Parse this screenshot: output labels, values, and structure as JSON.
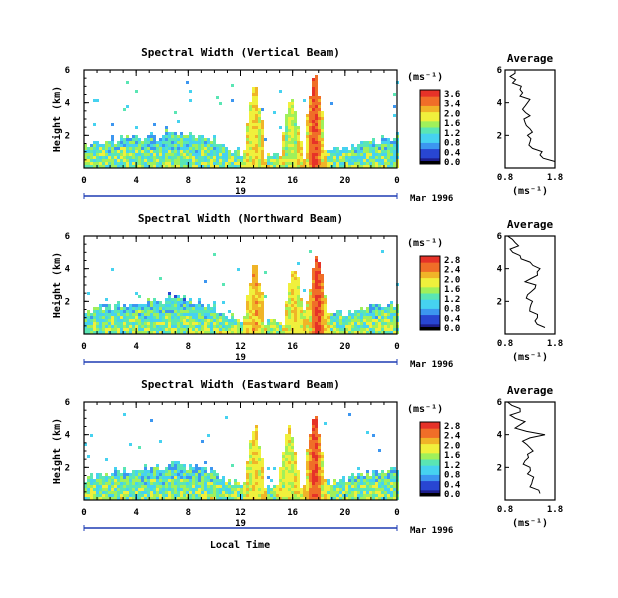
{
  "colors": {
    "scale": [
      "#1e1e8c",
      "#2846d2",
      "#3c96f0",
      "#46d2f0",
      "#5ae6b4",
      "#a0f05a",
      "#f0f03c",
      "#f0b428",
      "#f06e28",
      "#e63228"
    ],
    "frame": "#000000",
    "date_bar": "#1e3cb4"
  },
  "panels": [
    {
      "title": "Spectral Width (Vertical Beam)",
      "ylabel": "Height (km)",
      "yticks": [
        "6",
        "4",
        "2"
      ],
      "xticks": [
        "0",
        "4",
        "8",
        "12",
        "16",
        "20",
        "0"
      ],
      "date_day": "19",
      "date_label": "Mar 1996",
      "colorbar": {
        "unit": "(ms⁻¹)",
        "ticks": [
          "3.6",
          "3.4",
          "2.0",
          "1.6",
          "1.2",
          "0.8",
          "0.4",
          "0.0"
        ]
      },
      "avg": {
        "title": "Average",
        "xticks": [
          "0.8",
          "1.8"
        ],
        "xlabel": "(ms⁻¹)",
        "yticks": [
          "6",
          "4",
          "2"
        ]
      }
    },
    {
      "title": "Spectral Width (Northward Beam)",
      "ylabel": "Height (km)",
      "yticks": [
        "6",
        "4",
        "2"
      ],
      "xticks": [
        "0",
        "4",
        "8",
        "12",
        "16",
        "20",
        "0"
      ],
      "date_day": "19",
      "date_label": "Mar 1996",
      "colorbar": {
        "unit": "(ms⁻¹)",
        "ticks": [
          "2.8",
          "2.4",
          "2.0",
          "1.6",
          "1.2",
          "0.8",
          "0.4",
          "0.0"
        ]
      },
      "avg": {
        "title": "Average",
        "xticks": [
          "0.8",
          "1.8"
        ],
        "xlabel": "(ms⁻¹)",
        "yticks": [
          "6",
          "4",
          "2"
        ]
      }
    },
    {
      "title": "Spectral Width (Eastward Beam)",
      "ylabel": "Height (km)",
      "yticks": [
        "6",
        "4",
        "2"
      ],
      "xticks": [
        "0",
        "4",
        "8",
        "12",
        "16",
        "20",
        "0"
      ],
      "date_day": "19",
      "date_label": "Mar 1996",
      "colorbar": {
        "unit": "(ms⁻¹)",
        "ticks": [
          "2.8",
          "2.4",
          "2.0",
          "1.6",
          "1.2",
          "0.8",
          "0.4",
          "0.0"
        ]
      },
      "avg": {
        "title": "Average",
        "xticks": [
          "0.8",
          "1.8"
        ],
        "xlabel": "(ms⁻¹)",
        "yticks": [
          "6",
          "4",
          "2"
        ]
      }
    }
  ],
  "xlabel": "Local Time",
  "chart_data": [
    {
      "type": "heatmap",
      "title": "Spectral Width (Vertical Beam)",
      "xlabel": "Local Time",
      "ylabel": "Height (km)",
      "xlim": [
        0,
        24
      ],
      "ylim": [
        0,
        6
      ],
      "clim": [
        0,
        3.6
      ],
      "hotspots": [
        {
          "t": 13,
          "height_top": 5.2,
          "level": 0.8
        },
        {
          "t": 15.8,
          "height_top": 4.6,
          "level": 0.7
        },
        {
          "t": 17.6,
          "height_top": 6.0,
          "level": 1.0
        }
      ],
      "average_profile": {
        "xlim": [
          0.8,
          1.8
        ],
        "ylim": [
          0,
          6
        ],
        "heights": [
          0.4,
          0.8,
          1.2,
          1.6,
          2.0,
          2.4,
          2.8,
          3.2,
          3.6,
          4.0,
          4.4,
          4.8,
          5.2,
          5.6,
          6.0
        ],
        "values": [
          1.8,
          1.5,
          1.35,
          1.3,
          1.25,
          1.3,
          1.2,
          1.3,
          1.15,
          1.25,
          1.1,
          1.1,
          0.95,
          0.9,
          1.0
        ]
      }
    },
    {
      "type": "heatmap",
      "title": "Spectral Width (Northward Beam)",
      "xlabel": "Local Time",
      "ylabel": "Height (km)",
      "xlim": [
        0,
        24
      ],
      "ylim": [
        0,
        6
      ],
      "clim": [
        0,
        2.8
      ],
      "hotspots": [
        {
          "t": 13,
          "height_top": 4.5,
          "level": 0.85
        },
        {
          "t": 16,
          "height_top": 4.3,
          "level": 0.8
        },
        {
          "t": 17.8,
          "height_top": 5.0,
          "level": 1.0
        }
      ],
      "average_profile": {
        "xlim": [
          0.8,
          1.8
        ],
        "ylim": [
          0,
          6
        ],
        "heights": [
          0.4,
          0.8,
          1.2,
          1.6,
          2.0,
          2.4,
          2.8,
          3.2,
          3.6,
          4.0,
          4.4,
          4.8,
          5.2,
          5.6,
          6.0
        ],
        "values": [
          1.6,
          1.4,
          1.45,
          1.3,
          1.35,
          1.25,
          1.4,
          1.2,
          1.45,
          1.5,
          1.3,
          1.1,
          0.9,
          1.0,
          0.85
        ]
      }
    },
    {
      "type": "heatmap",
      "title": "Spectral Width (Eastward Beam)",
      "xlabel": "Local Time",
      "ylabel": "Height (km)",
      "xlim": [
        0,
        24
      ],
      "ylim": [
        0,
        6
      ],
      "clim": [
        0,
        2.8
      ],
      "hotspots": [
        {
          "t": 13,
          "height_top": 4.8,
          "level": 0.8
        },
        {
          "t": 15.6,
          "height_top": 4.6,
          "level": 0.75
        },
        {
          "t": 17.6,
          "height_top": 5.6,
          "level": 1.0
        }
      ],
      "average_profile": {
        "xlim": [
          0.8,
          1.8
        ],
        "ylim": [
          0,
          6
        ],
        "heights": [
          0.4,
          0.8,
          1.2,
          1.6,
          2.0,
          2.4,
          2.8,
          3.2,
          3.6,
          4.0,
          4.4,
          4.8,
          5.2,
          5.6,
          6.0
        ],
        "values": [
          1.5,
          1.3,
          1.35,
          1.25,
          1.3,
          1.2,
          1.25,
          1.3,
          1.15,
          1.6,
          1.0,
          1.2,
          0.9,
          1.1,
          0.85
        ]
      }
    }
  ]
}
